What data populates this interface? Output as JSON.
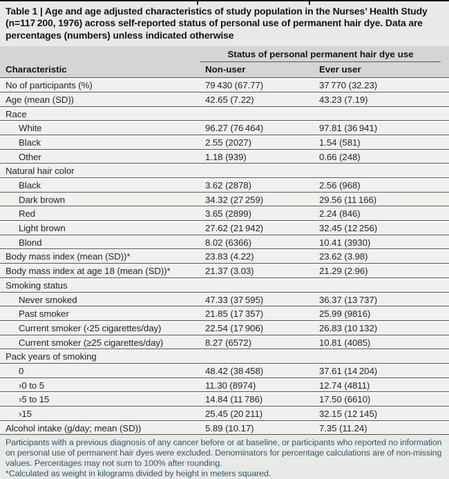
{
  "table": {
    "title": "Table 1 | Age and age adjusted characteristics of study population in the Nurses’ Health Study (n=117 200, 1976) across self-reported status of personal use of permanent hair dye. Data are percentages (numbers) unless indicated otherwise",
    "group_header": "Status of personal permanent hair dye use",
    "columns": {
      "characteristic": "Characteristic",
      "non_user": "Non-user",
      "ever_user": "Ever user"
    },
    "rows": [
      {
        "label": "No of participants (%)",
        "style": "plain",
        "non_user": "79 430 (67.77)",
        "ever_user": "37 770 (32.23)"
      },
      {
        "label": "Age (mean (SD))",
        "style": "plain",
        "non_user": "42.65 (7.22)",
        "ever_user": "43.23 (7.19)"
      },
      {
        "label": "Race",
        "style": "section",
        "non_user": "",
        "ever_user": ""
      },
      {
        "label": "White",
        "style": "indent",
        "non_user": "96.27 (76 464)",
        "ever_user": "97.81 (36 941)"
      },
      {
        "label": "Black",
        "style": "indent",
        "non_user": "2.55 (2027)",
        "ever_user": "1.54 (581)"
      },
      {
        "label": "Other",
        "style": "indent",
        "non_user": "1.18 (939)",
        "ever_user": "0.66 (248)"
      },
      {
        "label": "Natural hair color",
        "style": "section",
        "non_user": "",
        "ever_user": ""
      },
      {
        "label": "Black",
        "style": "indent",
        "non_user": "3.62 (2878)",
        "ever_user": "2.56 (968)"
      },
      {
        "label": "Dark brown",
        "style": "indent",
        "non_user": "34.32 (27 259)",
        "ever_user": "29.56 (11 166)"
      },
      {
        "label": "Red",
        "style": "indent",
        "non_user": "3.65 (2899)",
        "ever_user": "2.24 (846)"
      },
      {
        "label": "Light brown",
        "style": "indent",
        "non_user": "27.62 (21 942)",
        "ever_user": "32.45 (12 256)"
      },
      {
        "label": "Blond",
        "style": "indent",
        "non_user": "8.02 (6366)",
        "ever_user": "10.41 (3930)"
      },
      {
        "label": "Body mass index (mean (SD))*",
        "style": "plain",
        "non_user": "23.83 (4.22)",
        "ever_user": "23.62 (3.98)"
      },
      {
        "label": "Body mass index at age 18 (mean (SD))*",
        "style": "plain",
        "non_user": "21.37 (3.03)",
        "ever_user": "21.29 (2.96)"
      },
      {
        "label": "Smoking status",
        "style": "section",
        "non_user": "",
        "ever_user": ""
      },
      {
        "label": "Never smoked",
        "style": "indent",
        "non_user": "47.33 (37 595)",
        "ever_user": "36.37 (13 737)"
      },
      {
        "label": "Past smoker",
        "style": "indent",
        "non_user": "21.85 (17 357)",
        "ever_user": "25.99 (9816)"
      },
      {
        "label": "Current smoker (‹25 cigarettes/day)",
        "style": "indent",
        "non_user": "22.54 (17 906)",
        "ever_user": "26.83 (10 132)"
      },
      {
        "label": "Current smoker (≥25 cigarettes/day)",
        "style": "indent",
        "non_user": "8.27 (6572)",
        "ever_user": "10.81 (4085)"
      },
      {
        "label": "Pack years of smoking",
        "style": "section",
        "non_user": "",
        "ever_user": ""
      },
      {
        "label": "0",
        "style": "indent",
        "non_user": "48.42 (38 458)",
        "ever_user": "37.61 (14 204)"
      },
      {
        "label": "›0 to 5",
        "style": "indent",
        "non_user": "11.30 (8974)",
        "ever_user": "12.74 (4811)"
      },
      {
        "label": "›5 to 15",
        "style": "indent",
        "non_user": "14.84 (11 786)",
        "ever_user": "17.50 (6610)"
      },
      {
        "label": "›15",
        "style": "indent",
        "non_user": "25.45 (20 211)",
        "ever_user": "32.15 (12 145)"
      },
      {
        "label": "Alcohol intake (g/day; mean (SD))",
        "style": "plain",
        "non_user": "5.89 (10.17)",
        "ever_user": "7.35 (11.24)"
      }
    ],
    "footnotes": [
      "Participants with a previous diagnosis of any cancer before or at baseline, or participants who reported no information on personal use of permanent hair dyes were excluded. Denominators for percentage calculations are of non-missing values. Percentages may not sum to 100% after rounding.",
      "*Calculated as weight in kilograms divided by height in meters squared."
    ]
  }
}
